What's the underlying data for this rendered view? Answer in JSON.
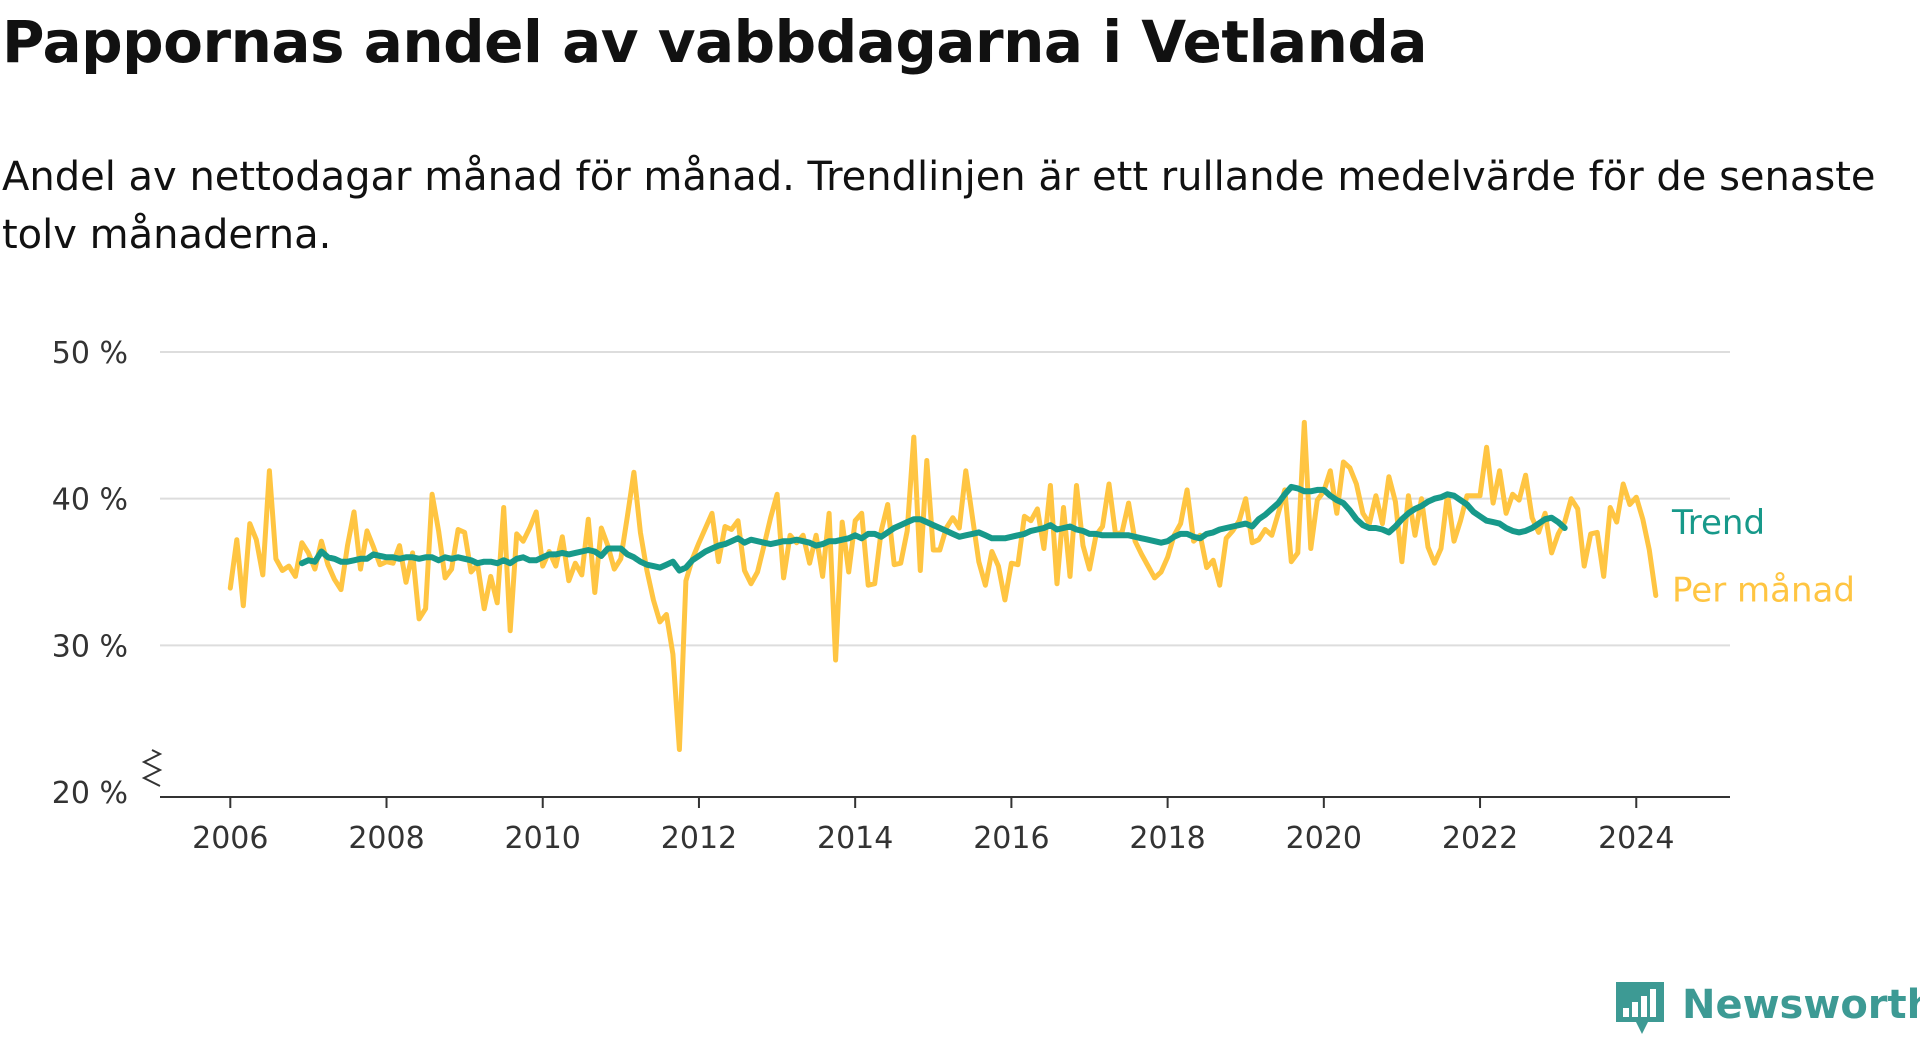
{
  "title": "Pappornas andel av vabbdagarna i Vetlanda",
  "subtitle": "Andel av nettodagar månad för månad. Trendlinjen är ett rullande medelvärde för de senaste tolv månaderna.",
  "logo": {
    "text": "Newsworthy",
    "icon": "bar-chart-speech-bubble-icon"
  },
  "colors": {
    "trend": "#17998a",
    "monthly": "#ffc542",
    "grid": "#dddddd",
    "axis": "#333333",
    "brand": "#3d9a94"
  },
  "chart_data": {
    "type": "line",
    "ylim": [
      20,
      50
    ],
    "xlim": [
      2005.1,
      2025.2
    ],
    "y_ticks": [
      20,
      30,
      40,
      50
    ],
    "y_tick_labels": [
      "20 %",
      "30 %",
      "40 %",
      "50 %"
    ],
    "x_ticks": [
      2006,
      2008,
      2010,
      2012,
      2014,
      2016,
      2018,
      2020,
      2022,
      2024
    ],
    "x_tick_labels": [
      "2006",
      "2008",
      "2010",
      "2012",
      "2014",
      "2016",
      "2018",
      "2020",
      "2022",
      "2024"
    ],
    "grid": "horizontal",
    "axis_break": true,
    "x_start": 2006.0,
    "x_step": 0.0833333,
    "series": [
      {
        "name": "Per månad",
        "values": [
          33.9,
          37.2,
          32.7,
          38.3,
          37.2,
          34.8,
          41.9,
          35.9,
          35.1,
          35.4,
          34.7,
          37.0,
          36.3,
          35.2,
          37.1,
          35.5,
          34.5,
          33.8,
          36.8,
          39.1,
          35.2,
          37.8,
          36.7,
          35.5,
          35.7,
          35.6,
          36.8,
          34.3,
          36.3,
          31.8,
          32.5,
          40.3,
          37.8,
          34.6,
          35.2,
          37.9,
          37.7,
          35.0,
          35.5,
          32.5,
          34.7,
          32.9,
          39.4,
          31.0,
          37.6,
          37.1,
          38.0,
          39.1,
          35.4,
          36.4,
          35.4,
          37.4,
          34.4,
          35.6,
          34.8,
          38.6,
          33.6,
          38.0,
          36.8,
          35.2,
          35.9,
          38.8,
          41.8,
          37.7,
          35.1,
          33.1,
          31.6,
          32.1,
          29.4,
          22.9,
          34.4,
          35.9,
          37.0,
          38.0,
          39.0,
          35.7,
          38.1,
          37.9,
          38.5,
          35.1,
          34.2,
          35.0,
          36.8,
          38.7,
          40.3,
          34.6,
          37.5,
          37.0,
          37.5,
          35.6,
          37.5,
          34.7,
          39.0,
          29.0,
          38.4,
          35.0,
          38.5,
          39.0,
          34.1,
          34.2,
          37.8,
          39.6,
          35.5,
          35.6,
          37.8,
          44.2,
          35.1,
          42.6,
          36.5,
          36.5,
          38.0,
          38.7,
          38.0,
          41.9,
          38.8,
          35.7,
          34.1,
          36.4,
          35.4,
          33.1,
          35.6,
          35.5,
          38.8,
          38.5,
          39.3,
          36.6,
          40.9,
          34.2,
          39.4,
          34.7,
          40.9,
          36.8,
          35.2,
          37.5,
          38.1,
          41.0,
          37.6,
          37.7,
          39.7,
          37.1,
          36.2,
          35.4,
          34.6,
          35.0,
          36.0,
          37.5,
          38.3,
          40.6,
          37.1,
          37.5,
          35.3,
          35.8,
          34.1,
          37.3,
          37.8,
          38.5,
          40.0,
          37.0,
          37.2,
          37.9,
          37.5,
          39.0,
          40.6,
          35.7,
          36.3,
          45.2,
          36.6,
          39.9,
          40.5,
          41.9,
          39.0,
          42.5,
          42.1,
          41.0,
          39.0,
          38.3,
          40.2,
          38.3,
          41.5,
          39.8,
          35.7,
          40.2,
          37.5,
          40.0,
          36.7,
          35.6,
          36.6,
          40.3,
          37.1,
          38.5,
          40.2,
          40.2,
          40.2,
          43.5,
          39.7,
          41.9,
          39.0,
          40.3,
          39.9,
          41.6,
          38.7,
          37.7,
          39.0,
          36.3,
          37.6,
          38.4,
          40.0,
          39.3,
          35.4,
          37.6,
          37.7,
          34.7,
          39.4,
          38.4,
          41.0,
          39.6,
          40.1,
          38.6,
          36.5,
          33.4
        ]
      },
      {
        "name": "Trend",
        "start_index": 11,
        "values": [
          35.6,
          35.8,
          35.7,
          36.4,
          36.0,
          35.9,
          35.7,
          35.7,
          35.8,
          35.9,
          35.9,
          36.2,
          36.1,
          36.0,
          36.0,
          35.9,
          36.0,
          36.0,
          35.9,
          36.0,
          36.0,
          35.8,
          36.0,
          35.9,
          36.0,
          35.9,
          35.8,
          35.6,
          35.7,
          35.7,
          35.6,
          35.8,
          35.6,
          35.9,
          36.0,
          35.8,
          35.8,
          36.0,
          36.2,
          36.2,
          36.3,
          36.2,
          36.3,
          36.4,
          36.5,
          36.4,
          36.1,
          36.6,
          36.6,
          36.6,
          36.2,
          36.0,
          35.7,
          35.5,
          35.4,
          35.3,
          35.5,
          35.7,
          35.1,
          35.3,
          35.8,
          36.1,
          36.4,
          36.6,
          36.8,
          36.9,
          37.1,
          37.3,
          37.0,
          37.2,
          37.1,
          37.0,
          36.9,
          37.0,
          37.1,
          37.1,
          37.2,
          37.1,
          37.0,
          36.8,
          36.9,
          37.1,
          37.1,
          37.2,
          37.3,
          37.5,
          37.3,
          37.6,
          37.6,
          37.4,
          37.7,
          38.0,
          38.2,
          38.4,
          38.6,
          38.6,
          38.4,
          38.2,
          38.0,
          37.8,
          37.6,
          37.4,
          37.5,
          37.6,
          37.7,
          37.5,
          37.3,
          37.3,
          37.3,
          37.4,
          37.5,
          37.6,
          37.8,
          37.9,
          38.0,
          38.2,
          37.9,
          38.0,
          38.1,
          37.9,
          37.8,
          37.6,
          37.6,
          37.5,
          37.5,
          37.5,
          37.5,
          37.5,
          37.4,
          37.3,
          37.2,
          37.1,
          37.0,
          37.1,
          37.4,
          37.6,
          37.6,
          37.4,
          37.3,
          37.6,
          37.7,
          37.9,
          38.0,
          38.1,
          38.2,
          38.3,
          38.1,
          38.6,
          38.9,
          39.3,
          39.7,
          40.3,
          40.8,
          40.7,
          40.5,
          40.5,
          40.6,
          40.6,
          40.2,
          39.9,
          39.7,
          39.2,
          38.6,
          38.2,
          38.0,
          38.0,
          37.9,
          37.7,
          38.1,
          38.6,
          39.0,
          39.3,
          39.5,
          39.8,
          40.0,
          40.1,
          40.3,
          40.2,
          39.9,
          39.6,
          39.1,
          38.8,
          38.5,
          38.4,
          38.3,
          38.0,
          37.8,
          37.7,
          37.8,
          38.0,
          38.3,
          38.6,
          38.7,
          38.4,
          38.0
        ]
      }
    ]
  }
}
